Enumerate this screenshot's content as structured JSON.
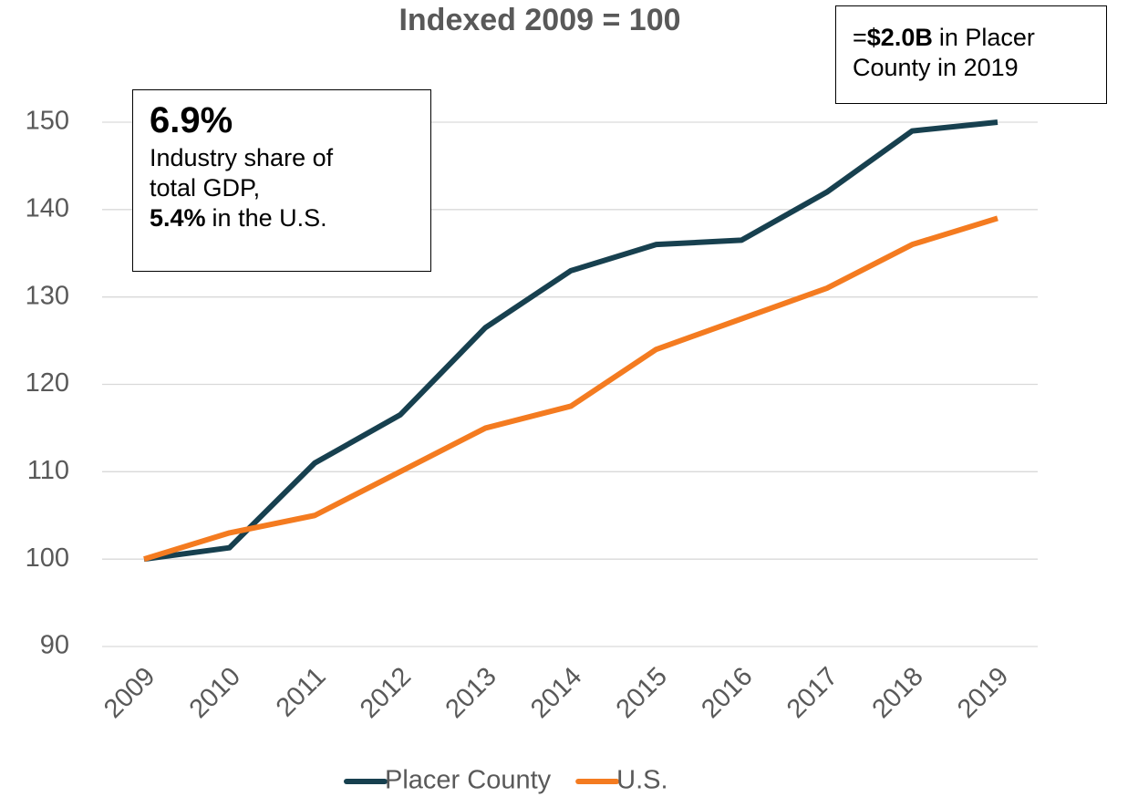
{
  "chart_data": {
    "type": "line",
    "title": "Indexed 2009 = 100",
    "x": [
      "2009",
      "2010",
      "2011",
      "2012",
      "2013",
      "2014",
      "2015",
      "2016",
      "2017",
      "2018",
      "2019"
    ],
    "series": [
      {
        "name": "Placer County",
        "color": "#17404f",
        "values": [
          100,
          101.3,
          111,
          116.5,
          126.5,
          133,
          136,
          136.5,
          142,
          149,
          150
        ]
      },
      {
        "name": "U.S.",
        "color": "#f47b20",
        "values": [
          100,
          103,
          105,
          110,
          115,
          117.5,
          124,
          127.5,
          131,
          136,
          139
        ]
      }
    ],
    "ylim": [
      90,
      150
    ],
    "yticks": [
      90,
      100,
      110,
      120,
      130,
      140,
      150
    ],
    "grid": true,
    "legend": "bottom",
    "annotations": [
      {
        "headline": "6.9%",
        "line1": "Industry share of",
        "line2": "total GDP,",
        "line3_bold": "5.4%",
        "line3": "in the U.S."
      },
      {
        "prefix": "=",
        "bold": "$2.0B",
        "line1": "in Placer",
        "line2": "County in 2019"
      }
    ]
  }
}
